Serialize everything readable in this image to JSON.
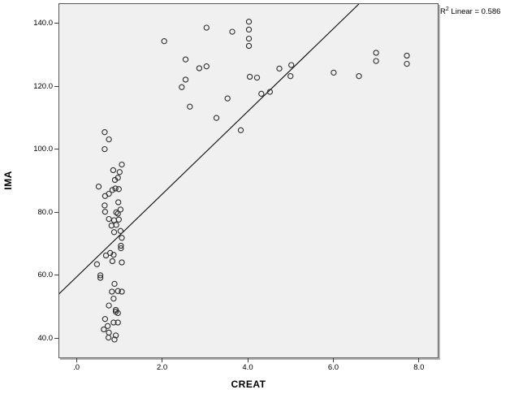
{
  "chart": {
    "y_axis": {
      "label": "IMA"
    },
    "x_axis": {
      "label": "CREAT"
    },
    "annotation": {
      "base": "R",
      "exponent": "2",
      "rest": " Linear = 0.586"
    },
    "colors": {
      "plot_background": "#f0f0f0",
      "frame": "#565656",
      "marker_stroke": "#2e2e2e",
      "fit_line": "#1a1a1a",
      "page_background": "#ffffff"
    }
  },
  "chart_data": {
    "type": "scatter",
    "title": "",
    "xlabel": "CREAT",
    "ylabel": "IMA",
    "annotation": "R² Linear = 0.586",
    "r_squared": 0.586,
    "grid": false,
    "marker": "open-circle",
    "xlim": [
      -0.42,
      8.42
    ],
    "ylim": [
      34.1,
      146.4
    ],
    "x_ticks": [
      0,
      2,
      4,
      6,
      8
    ],
    "x_tick_labels": [
      ".0",
      "2.0",
      "4.0",
      "6.0",
      "8.0"
    ],
    "y_ticks": [
      140,
      120,
      100,
      80,
      60,
      40
    ],
    "y_tick_labels": [
      "140.0",
      "120.0",
      "100.0",
      "80.0",
      "60.0",
      "40.0"
    ],
    "fit_line": {
      "slope": 13.15,
      "intercept": 59.9
    },
    "points": [
      [
        0.64,
        105.7
      ],
      [
        0.74,
        103.4
      ],
      [
        0.64,
        100.3
      ],
      [
        1.04,
        95.4
      ],
      [
        0.84,
        93.6
      ],
      [
        0.99,
        93.0
      ],
      [
        0.95,
        91.2
      ],
      [
        0.88,
        90.5
      ],
      [
        0.5,
        88.4
      ],
      [
        0.97,
        87.6
      ],
      [
        0.89,
        87.8
      ],
      [
        0.82,
        87.3
      ],
      [
        0.74,
        86.1
      ],
      [
        0.65,
        85.4
      ],
      [
        0.64,
        82.4
      ],
      [
        0.96,
        83.4
      ],
      [
        1.01,
        81.1
      ],
      [
        0.65,
        80.4
      ],
      [
        0.91,
        80.2
      ],
      [
        0.95,
        79.8
      ],
      [
        0.74,
        78.1
      ],
      [
        0.86,
        77.7
      ],
      [
        0.97,
        77.9
      ],
      [
        0.8,
        76.0
      ],
      [
        0.91,
        76.2
      ],
      [
        0.86,
        73.9
      ],
      [
        1.01,
        74.3
      ],
      [
        1.04,
        72.1
      ],
      [
        1.02,
        69.6
      ],
      [
        1.02,
        68.8
      ],
      [
        0.77,
        67.3
      ],
      [
        0.67,
        66.5
      ],
      [
        0.85,
        66.7
      ],
      [
        0.82,
        64.7
      ],
      [
        1.04,
        64.3
      ],
      [
        0.46,
        63.7
      ],
      [
        0.54,
        60.2
      ],
      [
        0.54,
        59.4
      ],
      [
        0.87,
        57.5
      ],
      [
        0.81,
        55.0
      ],
      [
        0.95,
        55.2
      ],
      [
        1.04,
        55.0
      ],
      [
        0.85,
        52.8
      ],
      [
        0.74,
        50.6
      ],
      [
        0.9,
        49.2
      ],
      [
        0.9,
        48.6
      ],
      [
        0.95,
        48.2
      ],
      [
        0.65,
        46.3
      ],
      [
        0.85,
        45.2
      ],
      [
        0.95,
        45.2
      ],
      [
        0.71,
        44.1
      ],
      [
        0.62,
        43.0
      ],
      [
        0.74,
        42.0
      ],
      [
        0.9,
        41.1
      ],
      [
        0.73,
        40.4
      ],
      [
        0.87,
        39.8
      ],
      [
        2.03,
        134.6
      ],
      [
        3.02,
        138.9
      ],
      [
        3.62,
        137.6
      ],
      [
        4.01,
        140.8
      ],
      [
        4.01,
        138.3
      ],
      [
        4.01,
        135.4
      ],
      [
        4.01,
        133.1
      ],
      [
        2.53,
        128.8
      ],
      [
        2.85,
        126.0
      ],
      [
        3.02,
        126.6
      ],
      [
        2.53,
        122.4
      ],
      [
        2.44,
        120.0
      ],
      [
        4.03,
        123.3
      ],
      [
        4.2,
        123.0
      ],
      [
        4.3,
        117.9
      ],
      [
        3.51,
        116.4
      ],
      [
        2.63,
        113.8
      ],
      [
        3.25,
        110.2
      ],
      [
        3.82,
        106.3
      ],
      [
        4.5,
        118.5
      ],
      [
        4.72,
        125.9
      ],
      [
        5.0,
        127.0
      ],
      [
        4.98,
        123.5
      ],
      [
        5.99,
        124.6
      ],
      [
        6.58,
        123.5
      ],
      [
        6.98,
        130.9
      ],
      [
        6.98,
        128.3
      ],
      [
        7.7,
        130.0
      ],
      [
        7.7,
        127.4
      ]
    ]
  }
}
